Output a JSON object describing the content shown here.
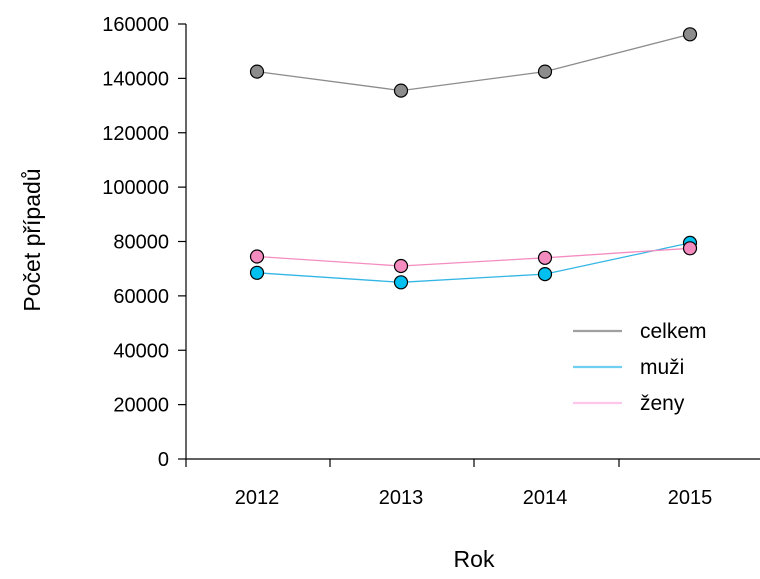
{
  "chart_data": {
    "type": "line",
    "categories": [
      "2012",
      "2013",
      "2014",
      "2015"
    ],
    "series": [
      {
        "name": "celkem",
        "values": [
          142500,
          135500,
          142500,
          156200
        ],
        "color": "#8c8c8c",
        "marker": "#8c8c8c"
      },
      {
        "name": "muži",
        "values": [
          68500,
          65000,
          68000,
          79500
        ],
        "color": "#33b5e5",
        "marker": "#00c0f0"
      },
      {
        "name": "ženy",
        "values": [
          74500,
          71000,
          74000,
          77500
        ],
        "color": "#f48cc0",
        "marker": "#f48cc0"
      }
    ],
    "xlabel": "Rok",
    "ylabel": "Počet případů",
    "ylim": [
      0,
      160000
    ],
    "yticks": [
      "0",
      "20000",
      "40000",
      "60000",
      "80000",
      "100000",
      "120000",
      "140000",
      "160000"
    ],
    "grid": false,
    "legend": "right",
    "legend_colors": [
      "#a0a0a0",
      "#6ecff0",
      "#ffc6ec"
    ]
  }
}
